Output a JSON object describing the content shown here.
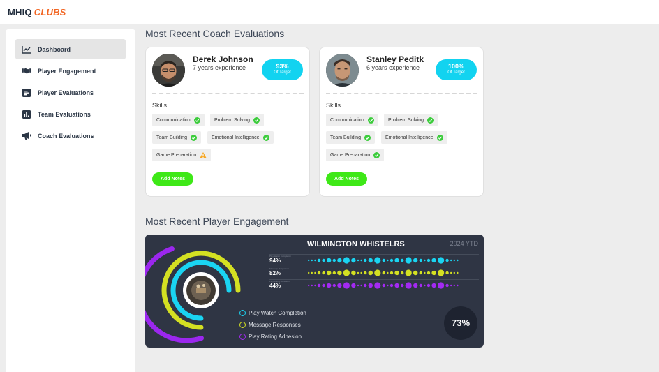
{
  "app": {
    "logo_main": "MHIQ",
    "logo_accent": "CLUBS"
  },
  "sidebar": {
    "items": [
      {
        "label": "Dashboard",
        "icon": "line-chart-icon",
        "active": true
      },
      {
        "label": "Player Engagement",
        "icon": "handshake-icon",
        "active": false
      },
      {
        "label": "Player Evaluations",
        "icon": "list-icon",
        "active": false
      },
      {
        "label": "Team Evaluations",
        "icon": "bar-chart-icon",
        "active": false
      },
      {
        "label": "Coach Evaluations",
        "icon": "megaphone-icon",
        "active": false
      }
    ]
  },
  "coach_section": {
    "title": "Most Recent Coach Evaluations"
  },
  "coaches": [
    {
      "name": "Derek Johnson",
      "experience": "7 years experience",
      "target_pct": "93%",
      "target_label": "Of Target",
      "skills_label": "Skills",
      "skills": [
        {
          "name": "Communication",
          "status": "check"
        },
        {
          "name": "Problem Solving",
          "status": "check"
        },
        {
          "name": "Team Building",
          "status": "check"
        },
        {
          "name": "Emotional Intelligence",
          "status": "check"
        },
        {
          "name": "Game Preparation",
          "status": "warning"
        }
      ],
      "notes_button": "Add Notes"
    },
    {
      "name": "Stanley Peditk",
      "experience": "6 years experience",
      "target_pct": "100%",
      "target_label": "Of Target",
      "skills_label": "Skills",
      "skills": [
        {
          "name": "Communication",
          "status": "check"
        },
        {
          "name": "Problem Solving",
          "status": "check"
        },
        {
          "name": "Team Building",
          "status": "check"
        },
        {
          "name": "Emotional Intelligence",
          "status": "check"
        },
        {
          "name": "Game Preparation",
          "status": "check"
        }
      ],
      "notes_button": "Add Notes"
    }
  ],
  "engagement_section": {
    "title": "Most Recent Player Engagement"
  },
  "engagement": {
    "team": "WILMINGTON WHISTELRS",
    "period": "2024 YTD",
    "overall": "73%",
    "metrics": [
      {
        "name": "Play Watch Completion",
        "value": "94%",
        "color": "#1ad4f2"
      },
      {
        "name": "Message Responses",
        "value": "82%",
        "color": "#d4e022"
      },
      {
        "name": "Play Rating Adhesion",
        "value": "44%",
        "color": "#a32af2"
      }
    ]
  },
  "colors": {
    "accent": "#f26522",
    "pill": "#12d3f0",
    "button": "#3ee817",
    "check": "#3ccc3c",
    "warning": "#f5a623"
  }
}
